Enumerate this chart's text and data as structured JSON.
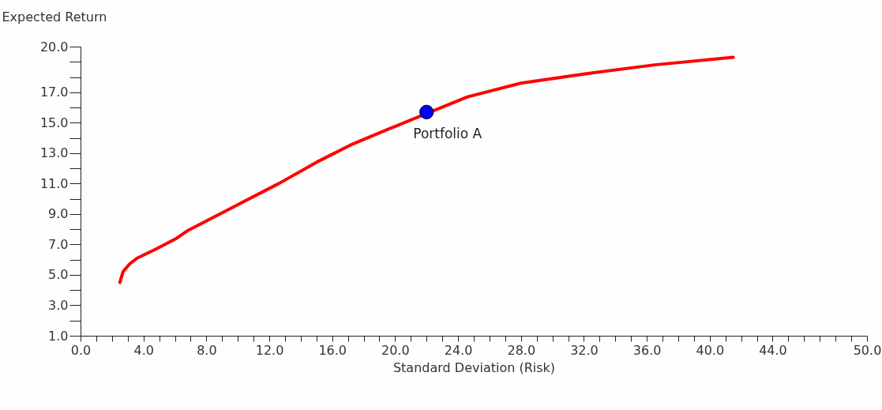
{
  "chart_data": {
    "type": "line",
    "xlabel": "Standard Deviation (Risk)",
    "ylabel": "Expected Return",
    "xlim": [
      0,
      50
    ],
    "ylim": [
      1,
      20
    ],
    "xticks": [
      {
        "value": 0,
        "label": "0.0"
      },
      {
        "value": 1,
        "label": null
      },
      {
        "value": 2,
        "label": null
      },
      {
        "value": 3,
        "label": null
      },
      {
        "value": 4,
        "label": "4.0"
      },
      {
        "value": 5,
        "label": null
      },
      {
        "value": 6,
        "label": null
      },
      {
        "value": 7,
        "label": null
      },
      {
        "value": 8,
        "label": "8.0"
      },
      {
        "value": 9,
        "label": null
      },
      {
        "value": 10,
        "label": null
      },
      {
        "value": 11,
        "label": null
      },
      {
        "value": 12,
        "label": "12.0"
      },
      {
        "value": 13,
        "label": null
      },
      {
        "value": 14,
        "label": null
      },
      {
        "value": 15,
        "label": null
      },
      {
        "value": 16,
        "label": "16.0"
      },
      {
        "value": 17,
        "label": null
      },
      {
        "value": 18,
        "label": null
      },
      {
        "value": 19,
        "label": null
      },
      {
        "value": 20,
        "label": "20.0"
      },
      {
        "value": 21,
        "label": null
      },
      {
        "value": 22,
        "label": null
      },
      {
        "value": 23,
        "label": null
      },
      {
        "value": 24,
        "label": "24.0"
      },
      {
        "value": 25,
        "label": null
      },
      {
        "value": 26,
        "label": null
      },
      {
        "value": 27,
        "label": null
      },
      {
        "value": 28,
        "label": "28.0"
      },
      {
        "value": 29,
        "label": null
      },
      {
        "value": 30,
        "label": null
      },
      {
        "value": 31,
        "label": null
      },
      {
        "value": 32,
        "label": "32.0"
      },
      {
        "value": 33,
        "label": null
      },
      {
        "value": 34,
        "label": null
      },
      {
        "value": 35,
        "label": null
      },
      {
        "value": 36,
        "label": "36.0"
      },
      {
        "value": 37,
        "label": null
      },
      {
        "value": 38,
        "label": null
      },
      {
        "value": 39,
        "label": null
      },
      {
        "value": 40,
        "label": "40.0"
      },
      {
        "value": 41,
        "label": null
      },
      {
        "value": 42,
        "label": null
      },
      {
        "value": 43,
        "label": null
      },
      {
        "value": 44,
        "label": "44.0"
      },
      {
        "value": 45,
        "label": null
      },
      {
        "value": 46,
        "label": null
      },
      {
        "value": 47,
        "label": null
      },
      {
        "value": 48,
        "label": null
      },
      {
        "value": 49,
        "label": null
      },
      {
        "value": 50,
        "label": "50.0"
      }
    ],
    "yticks": [
      {
        "value": 1,
        "label": "1.0"
      },
      {
        "value": 2,
        "label": null
      },
      {
        "value": 3,
        "label": "3.0"
      },
      {
        "value": 4,
        "label": null
      },
      {
        "value": 5,
        "label": "5.0"
      },
      {
        "value": 6,
        "label": null
      },
      {
        "value": 7,
        "label": "7.0"
      },
      {
        "value": 8,
        "label": null
      },
      {
        "value": 9,
        "label": "9.0"
      },
      {
        "value": 10,
        "label": null
      },
      {
        "value": 11,
        "label": "11.0"
      },
      {
        "value": 12,
        "label": null
      },
      {
        "value": 13,
        "label": "13.0"
      },
      {
        "value": 14,
        "label": null
      },
      {
        "value": 15,
        "label": "15.0"
      },
      {
        "value": 16,
        "label": null
      },
      {
        "value": 17,
        "label": "17.0"
      },
      {
        "value": 18,
        "label": null
      },
      {
        "value": 19,
        "label": null
      },
      {
        "value": 20,
        "label": "20.0"
      }
    ],
    "grid": false,
    "series": [
      {
        "type": "line",
        "color": "#ff0000",
        "x": [
          2.5,
          2.7,
          3.1,
          3.6,
          4.8,
          6.1,
          6.8,
          9.6,
          12.6,
          15.0,
          17.3,
          19.4,
          24.6,
          28.0,
          32.0,
          36.5,
          41.5
        ],
        "values": [
          4.5,
          5.2,
          5.7,
          6.1,
          6.7,
          7.4,
          7.9,
          9.4,
          11.0,
          12.4,
          13.6,
          14.5,
          16.7,
          17.6,
          18.2,
          18.8,
          19.3
        ]
      },
      {
        "type": "scatter",
        "color": "#0000ff",
        "x": [
          22.0
        ],
        "values": [
          15.7
        ]
      }
    ],
    "annotations": [
      {
        "text": "Portfolio A",
        "x": 22.0,
        "y": 15.7
      }
    ]
  }
}
